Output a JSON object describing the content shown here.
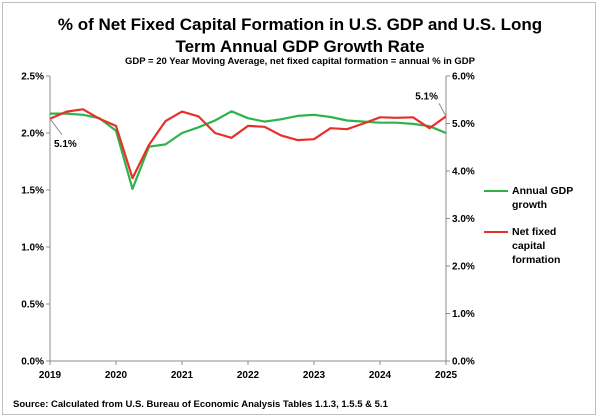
{
  "title_lines": [
    "% of Net Fixed Capital Formation in U.S. GDP and U.S. Long",
    "Term Annual GDP Growth Rate"
  ],
  "subtitle": "GDP = 20 Year Moving Average, net fixed capital formation = annual % in GDP",
  "source": "Source: Calculated  from U.S. Bureau of Economic Analysis Tables  1.1.3, 1.5.5 & 5.1",
  "colors": {
    "gdp": "#2db34a",
    "capital": "#e8302b",
    "axis": "#8c8c8c",
    "callout": "#8c8c8c"
  },
  "chart_data": {
    "type": "line",
    "title": "% of Net Fixed Capital Formation in U.S. GDP and U.S. Long Term Annual GDP Growth Rate",
    "subtitle": "GDP = 20 Year Moving Average, net fixed capital formation = annual % in GDP",
    "xlim": [
      2019,
      2025
    ],
    "x_ticks": [
      "2019",
      "2020",
      "2021",
      "2022",
      "2023",
      "2024",
      "2025"
    ],
    "ylim_left": [
      0,
      2.5
    ],
    "y_ticks_left": [
      "0.0%",
      "0.5%",
      "1.0%",
      "1.5%",
      "2.0%",
      "2.5%"
    ],
    "ylim_right": [
      0,
      6.0
    ],
    "y_ticks_right": [
      "0.0%",
      "1.0%",
      "2.0%",
      "3.0%",
      "4.0%",
      "5.0%",
      "6.0%"
    ],
    "grid": false,
    "legend_position": "right",
    "series": [
      {
        "name": "Annual GDP growth",
        "axis": "left",
        "x": [
          2019.0,
          2019.25,
          2019.5,
          2019.75,
          2020.0,
          2020.25,
          2020.5,
          2020.75,
          2021.0,
          2021.25,
          2021.5,
          2021.75,
          2022.0,
          2022.25,
          2022.5,
          2022.75,
          2023.0,
          2023.25,
          2023.5,
          2023.75,
          2024.0,
          2024.25,
          2024.5,
          2024.75,
          2025.0
        ],
        "values": [
          2.17,
          2.17,
          2.16,
          2.13,
          2.02,
          1.51,
          1.88,
          1.9,
          2.0,
          2.05,
          2.11,
          2.19,
          2.13,
          2.1,
          2.12,
          2.15,
          2.16,
          2.14,
          2.11,
          2.1,
          2.09,
          2.09,
          2.08,
          2.06,
          2.0
        ]
      },
      {
        "name": "Net fixed capital formation",
        "axis": "right",
        "x": [
          2019.0,
          2019.25,
          2019.5,
          2019.75,
          2020.0,
          2020.25,
          2020.5,
          2020.75,
          2021.0,
          2021.25,
          2021.5,
          2021.75,
          2022.0,
          2022.25,
          2022.5,
          2022.75,
          2023.0,
          2023.25,
          2023.5,
          2023.75,
          2024.0,
          2024.25,
          2024.5,
          2024.75,
          2025.0
        ],
        "values": [
          5.1,
          5.25,
          5.3,
          5.1,
          4.95,
          3.85,
          4.55,
          5.05,
          5.25,
          5.15,
          4.8,
          4.7,
          4.95,
          4.93,
          4.75,
          4.65,
          4.67,
          4.9,
          4.88,
          5.0,
          5.13,
          5.12,
          5.13,
          4.9,
          5.15
        ]
      }
    ],
    "annotations": [
      {
        "text": "5.1%",
        "series": "Net fixed capital formation",
        "x": 2019.0
      },
      {
        "text": "5.1%",
        "series": "Net fixed capital formation",
        "x": 2025.0
      }
    ]
  }
}
